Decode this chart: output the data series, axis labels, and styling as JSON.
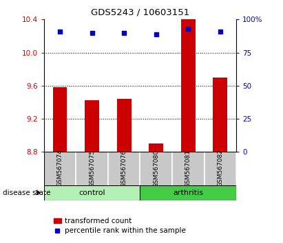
{
  "title": "GDS5243 / 10603151",
  "samples": [
    "GSM567074",
    "GSM567075",
    "GSM567076",
    "GSM567080",
    "GSM567081",
    "GSM567082"
  ],
  "group_labels": [
    "control",
    "arthritis"
  ],
  "transformed_counts": [
    9.58,
    9.42,
    9.44,
    8.9,
    10.55,
    9.7
  ],
  "percentile_ranks": [
    91,
    90,
    90,
    89,
    93,
    91
  ],
  "ylim_left": [
    8.8,
    10.4
  ],
  "ylim_right": [
    0,
    100
  ],
  "yticks_left": [
    8.8,
    9.2,
    9.6,
    10.0,
    10.4
  ],
  "yticks_right": [
    0,
    25,
    50,
    75,
    100
  ],
  "bar_color": "#cc0000",
  "scatter_color": "#0000cc",
  "control_color": "#b3f0b3",
  "arthritis_color": "#44cc44",
  "label_bg_color": "#c8c8c8",
  "disease_state_label": "disease state",
  "legend_bar_label": "transformed count",
  "legend_scatter_label": "percentile rank within the sample",
  "grid_lines": [
    9.2,
    9.6,
    10.0
  ]
}
